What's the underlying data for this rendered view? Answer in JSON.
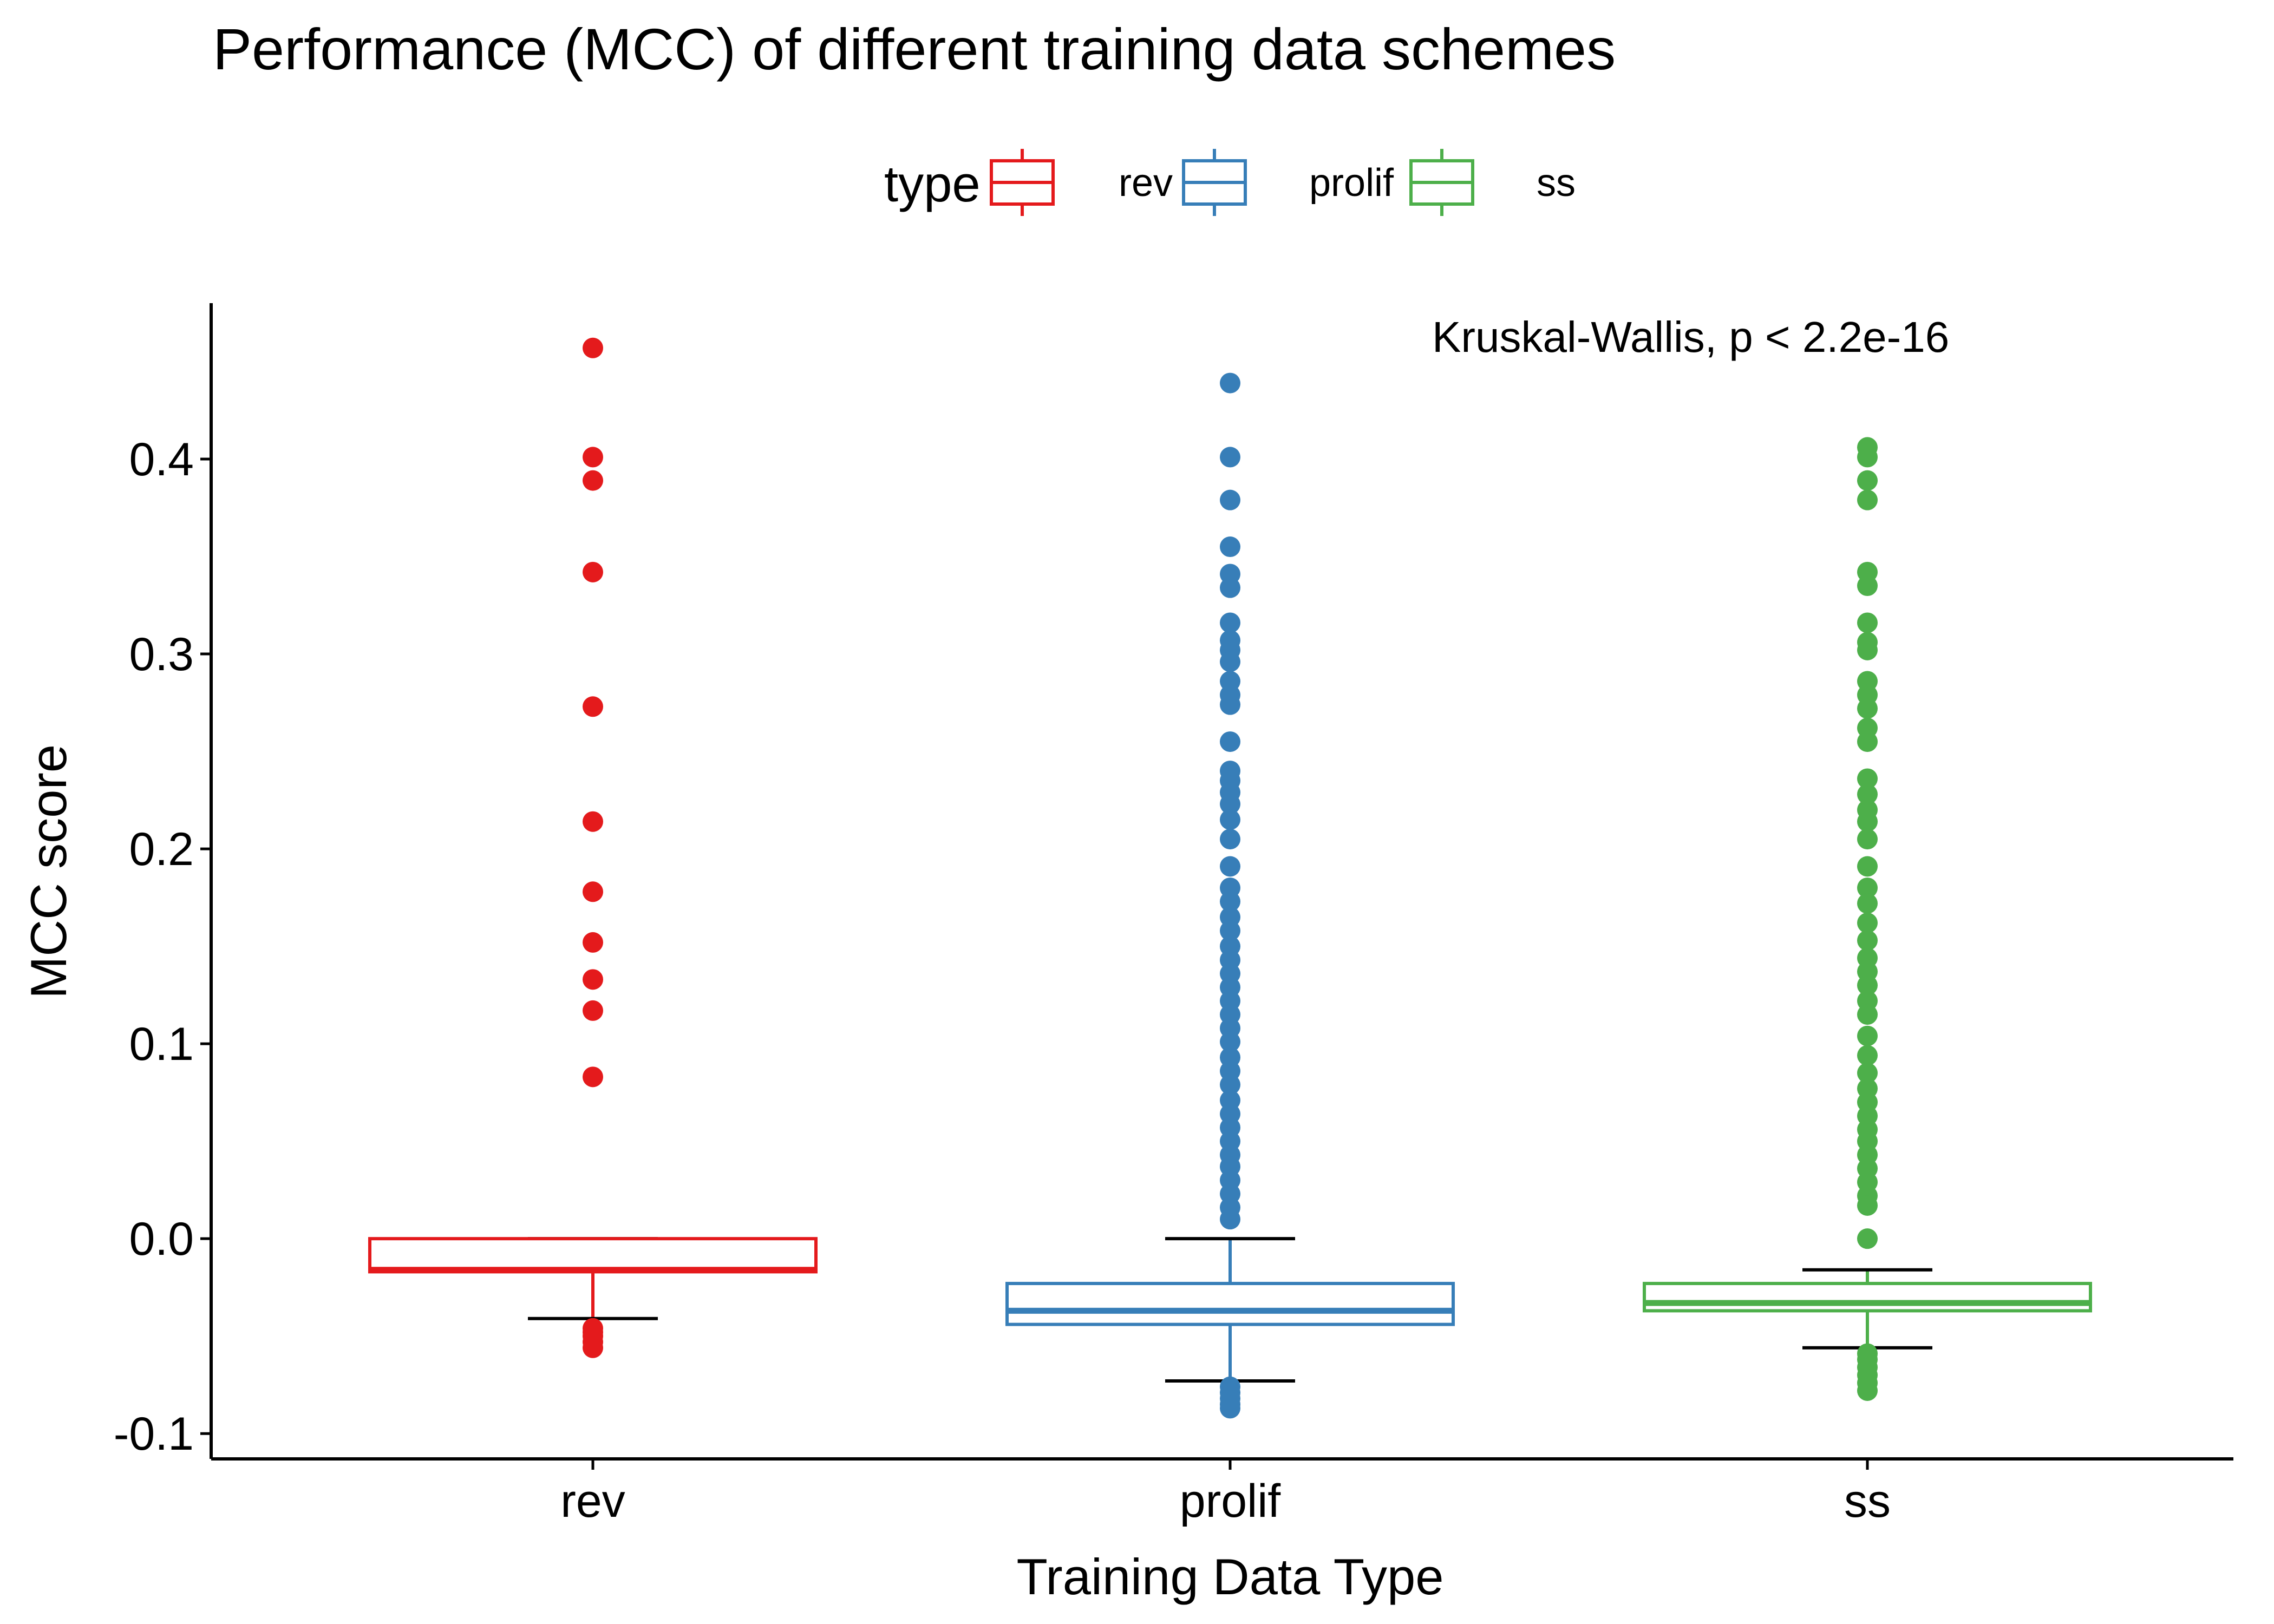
{
  "chart_data": {
    "type": "box",
    "title": "Performance (MCC) of different training data schemes",
    "xlabel": "Training Data Type",
    "ylabel": "MCC score",
    "ylim": [
      -0.113,
      0.48
    ],
    "yticks": [
      "-0.1",
      "0.0",
      "0.1",
      "0.2",
      "0.3",
      "0.4"
    ],
    "ytick_values": [
      -0.1,
      0.0,
      0.1,
      0.2,
      0.3,
      0.4
    ],
    "categories": [
      "rev",
      "prolif",
      "ss"
    ],
    "annotation": "Kruskal-Wallis, p < 2.2e-16",
    "legend": {
      "title": "type",
      "position": "top",
      "entries": [
        "rev",
        "prolif",
        "ss"
      ]
    },
    "grid": false,
    "colors": {
      "rev": "#E41A1C",
      "prolif": "#377EB8",
      "ss": "#4DAF4A"
    },
    "boxes": [
      {
        "category": "rev",
        "whisker_low": -0.041,
        "q1": -0.017,
        "median": -0.016,
        "q3": 0.0,
        "whisker_high": 0.0,
        "outliers": [
          0.457,
          0.401,
          0.389,
          0.342,
          0.273,
          0.214,
          0.178,
          0.152,
          0.133,
          0.117,
          0.083,
          -0.046,
          -0.048,
          -0.05,
          -0.053,
          -0.056
        ]
      },
      {
        "category": "prolif",
        "whisker_low": -0.073,
        "q1": -0.044,
        "median": -0.037,
        "q3": -0.023,
        "whisker_high": 0.0,
        "outliers": [
          0.439,
          0.401,
          0.379,
          0.355,
          0.341,
          0.334,
          0.316,
          0.307,
          0.302,
          0.296,
          0.286,
          0.279,
          0.274,
          0.255,
          0.24,
          0.235,
          0.229,
          0.223,
          0.215,
          0.205,
          0.191,
          0.18,
          0.173,
          0.165,
          0.158,
          0.15,
          0.143,
          0.136,
          0.129,
          0.122,
          0.115,
          0.108,
          0.101,
          0.093,
          0.086,
          0.079,
          0.071,
          0.064,
          0.057,
          0.05,
          0.043,
          0.037,
          0.03,
          0.023,
          0.016,
          0.01,
          -0.076,
          -0.079,
          -0.082,
          -0.085,
          -0.087
        ]
      },
      {
        "category": "ss",
        "whisker_low": -0.056,
        "q1": -0.037,
        "median": -0.033,
        "q3": -0.023,
        "whisker_high": -0.016,
        "outliers": [
          0.406,
          0.401,
          0.389,
          0.379,
          0.342,
          0.335,
          0.316,
          0.306,
          0.302,
          0.286,
          0.279,
          0.272,
          0.262,
          0.255,
          0.236,
          0.228,
          0.22,
          0.214,
          0.205,
          0.191,
          0.18,
          0.172,
          0.162,
          0.153,
          0.144,
          0.137,
          0.13,
          0.122,
          0.115,
          0.104,
          0.094,
          0.085,
          0.077,
          0.07,
          0.063,
          0.056,
          0.05,
          0.043,
          0.036,
          0.029,
          0.022,
          0.017,
          0.0,
          -0.059,
          -0.062,
          -0.066,
          -0.07,
          -0.074,
          -0.078
        ]
      }
    ]
  }
}
